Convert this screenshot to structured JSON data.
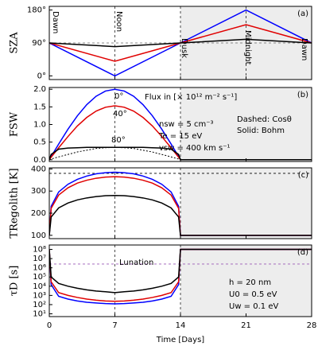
{
  "chart_data": [
    {
      "type": "line",
      "ylabel": "SZA",
      "panel_label": "(a)",
      "x": [
        0,
        7,
        14,
        21,
        28
      ],
      "xlim": [
        0,
        28
      ],
      "xticks": [
        0,
        7,
        14,
        21,
        28
      ],
      "ylim": [
        -10,
        190
      ],
      "yticks": [
        {
          "value": 0,
          "label": "0°"
        },
        {
          "value": 90,
          "label": "90°"
        },
        {
          "value": 180,
          "label": "180°"
        }
      ],
      "shaded_x": [
        14,
        28
      ],
      "vlines": [
        7,
        14,
        21
      ],
      "hline": 90,
      "hline_color": "#666666",
      "annotations": [
        "Dawn",
        "Noon",
        "Dusk",
        "Midnight",
        "Dawn"
      ],
      "series": [
        {
          "color": "#0000ff",
          "values": [
            90,
            0,
            90,
            180,
            90
          ]
        },
        {
          "color": "#e00000",
          "values": [
            90,
            40,
            90,
            140,
            90
          ]
        },
        {
          "color": "#000000",
          "values": [
            90,
            80,
            90,
            100,
            90
          ]
        }
      ]
    },
    {
      "type": "line",
      "ylabel": "FSW",
      "panel_label": "(b)",
      "x": [
        0,
        0.2,
        1,
        2,
        3,
        4,
        5,
        6,
        7,
        8,
        9,
        10,
        11,
        12,
        13,
        13.8,
        14,
        28
      ],
      "xlim": [
        0,
        28
      ],
      "xticks": [
        0,
        7,
        14,
        21,
        28
      ],
      "ylim": [
        -0.05,
        2.05
      ],
      "yticks": [
        {
          "value": 0,
          "label": "0.0"
        },
        0.5,
        {
          "value": 1,
          "label": "1.0"
        },
        1.5,
        {
          "value": 2,
          "label": "2.0"
        }
      ],
      "shaded_x": [
        14,
        28
      ],
      "vlines": [
        7,
        14
      ],
      "annotations": [
        "Flux in [× 10¹² m⁻² s⁻¹]",
        "nsw = 5 cm⁻³",
        "Te = 15 eV",
        "vsw = 400 km s⁻¹",
        "Dashed: Cosθ",
        "Solid: Bohm"
      ],
      "series": [
        {
          "name": "0°",
          "color": "#0000ff",
          "values": [
            0,
            0.09,
            0.445,
            0.868,
            1.247,
            1.564,
            1.802,
            1.95,
            2,
            1.95,
            1.802,
            1.564,
            1.247,
            0.868,
            0.445,
            0.09,
            0,
            0
          ]
        },
        {
          "name": "40°",
          "color": "#e00000",
          "values": [
            0,
            0.07,
            0.34,
            0.66,
            0.96,
            1.2,
            1.38,
            1.49,
            1.53,
            1.49,
            1.38,
            1.2,
            0.96,
            0.66,
            0.34,
            0.07,
            0,
            0
          ]
        },
        {
          "name": "80°",
          "color": "#000000",
          "values": [
            0,
            0.15,
            0.3,
            0.33,
            0.34,
            0.35,
            0.35,
            0.35,
            0.35,
            0.35,
            0.35,
            0.35,
            0.34,
            0.33,
            0.3,
            0.15,
            0,
            0
          ]
        },
        {
          "color": "#000000",
          "dash": true,
          "values": [
            0,
            0.02,
            0.08,
            0.15,
            0.22,
            0.27,
            0.32,
            0.34,
            0.35,
            0.34,
            0.32,
            0.27,
            0.22,
            0.15,
            0.08,
            0.02,
            0,
            0
          ]
        }
      ]
    },
    {
      "type": "line",
      "ylabel": "TRegolith [K]",
      "panel_label": "(c)",
      "x": [
        0,
        0.2,
        1,
        2,
        3,
        4,
        5,
        6,
        7,
        8,
        9,
        10,
        11,
        12,
        13,
        13.8,
        14,
        28
      ],
      "xlim": [
        0,
        28
      ],
      "xticks": [
        0,
        7,
        14,
        21,
        28
      ],
      "ylim": [
        85,
        405
      ],
      "yticks": [
        100,
        200,
        300,
        400
      ],
      "shaded_x": [
        14,
        28
      ],
      "vlines": [
        7,
        14
      ],
      "hline": 380,
      "hline_color": "#000000",
      "series": [
        {
          "color": "#0000ff",
          "values": [
            100,
            231,
            296,
            331,
            353,
            368,
            378,
            383,
            385,
            383,
            378,
            368,
            353,
            331,
            296,
            231,
            100,
            100
          ]
        },
        {
          "color": "#e00000",
          "values": [
            100,
            222,
            282,
            315,
            336,
            349,
            358,
            363,
            365,
            363,
            358,
            349,
            336,
            315,
            282,
            222,
            100,
            100
          ]
        },
        {
          "color": "#000000",
          "values": [
            100,
            183,
            224,
            246,
            260,
            269,
            275,
            279,
            280,
            279,
            275,
            269,
            260,
            246,
            224,
            183,
            100,
            100
          ]
        }
      ]
    },
    {
      "type": "line",
      "log_y": true,
      "ylabel": "τD [s]",
      "panel_label": "(d)",
      "xlabel": "Time [Days]",
      "x": [
        0,
        0.2,
        1,
        2,
        3,
        4,
        5,
        6,
        7,
        8,
        9,
        10,
        11,
        12,
        13,
        13.8,
        14,
        28
      ],
      "xlim": [
        0,
        28
      ],
      "xticks": [
        0,
        7,
        14,
        21,
        28
      ],
      "ylim": [
        5,
        300000000
      ],
      "yticks": [
        {
          "value": 10,
          "label": "10¹"
        },
        {
          "value": 100,
          "label": "10²"
        },
        {
          "value": 1000,
          "label": "10³"
        },
        {
          "value": 10000,
          "label": "10⁴"
        },
        {
          "value": 100000,
          "label": "10⁵"
        },
        {
          "value": 1000000,
          "label": "10⁶"
        },
        {
          "value": 10000000,
          "label": "10⁷"
        },
        {
          "value": 100000000,
          "label": "10⁸"
        }
      ],
      "shaded_x": [
        14,
        28
      ],
      "vlines": [
        7,
        14
      ],
      "hline": 2550000,
      "hline_color": "#9b59b6",
      "annotations": [
        "Lunation",
        "h = 20 nm",
        "U0 = 0.5 eV",
        "Uw = 0.1 eV"
      ],
      "series": [
        {
          "color": "#0000ff",
          "values": [
            100000000,
            15000,
            800,
            400,
            250,
            180,
            150,
            130,
            120,
            130,
            150,
            180,
            250,
            400,
            800,
            15000,
            100000000,
            100000000
          ]
        },
        {
          "color": "#e00000",
          "values": [
            100000000,
            30000,
            2000,
            1000,
            600,
            400,
            300,
            250,
            230,
            250,
            300,
            400,
            600,
            1000,
            2000,
            30000,
            100000000,
            100000000
          ]
        },
        {
          "color": "#000000",
          "values": [
            100000000,
            100000,
            20000,
            10000,
            6000,
            4000,
            3000,
            2500,
            2000,
            2500,
            3000,
            4000,
            6000,
            10000,
            20000,
            100000,
            100000000,
            100000000
          ]
        }
      ]
    }
  ]
}
